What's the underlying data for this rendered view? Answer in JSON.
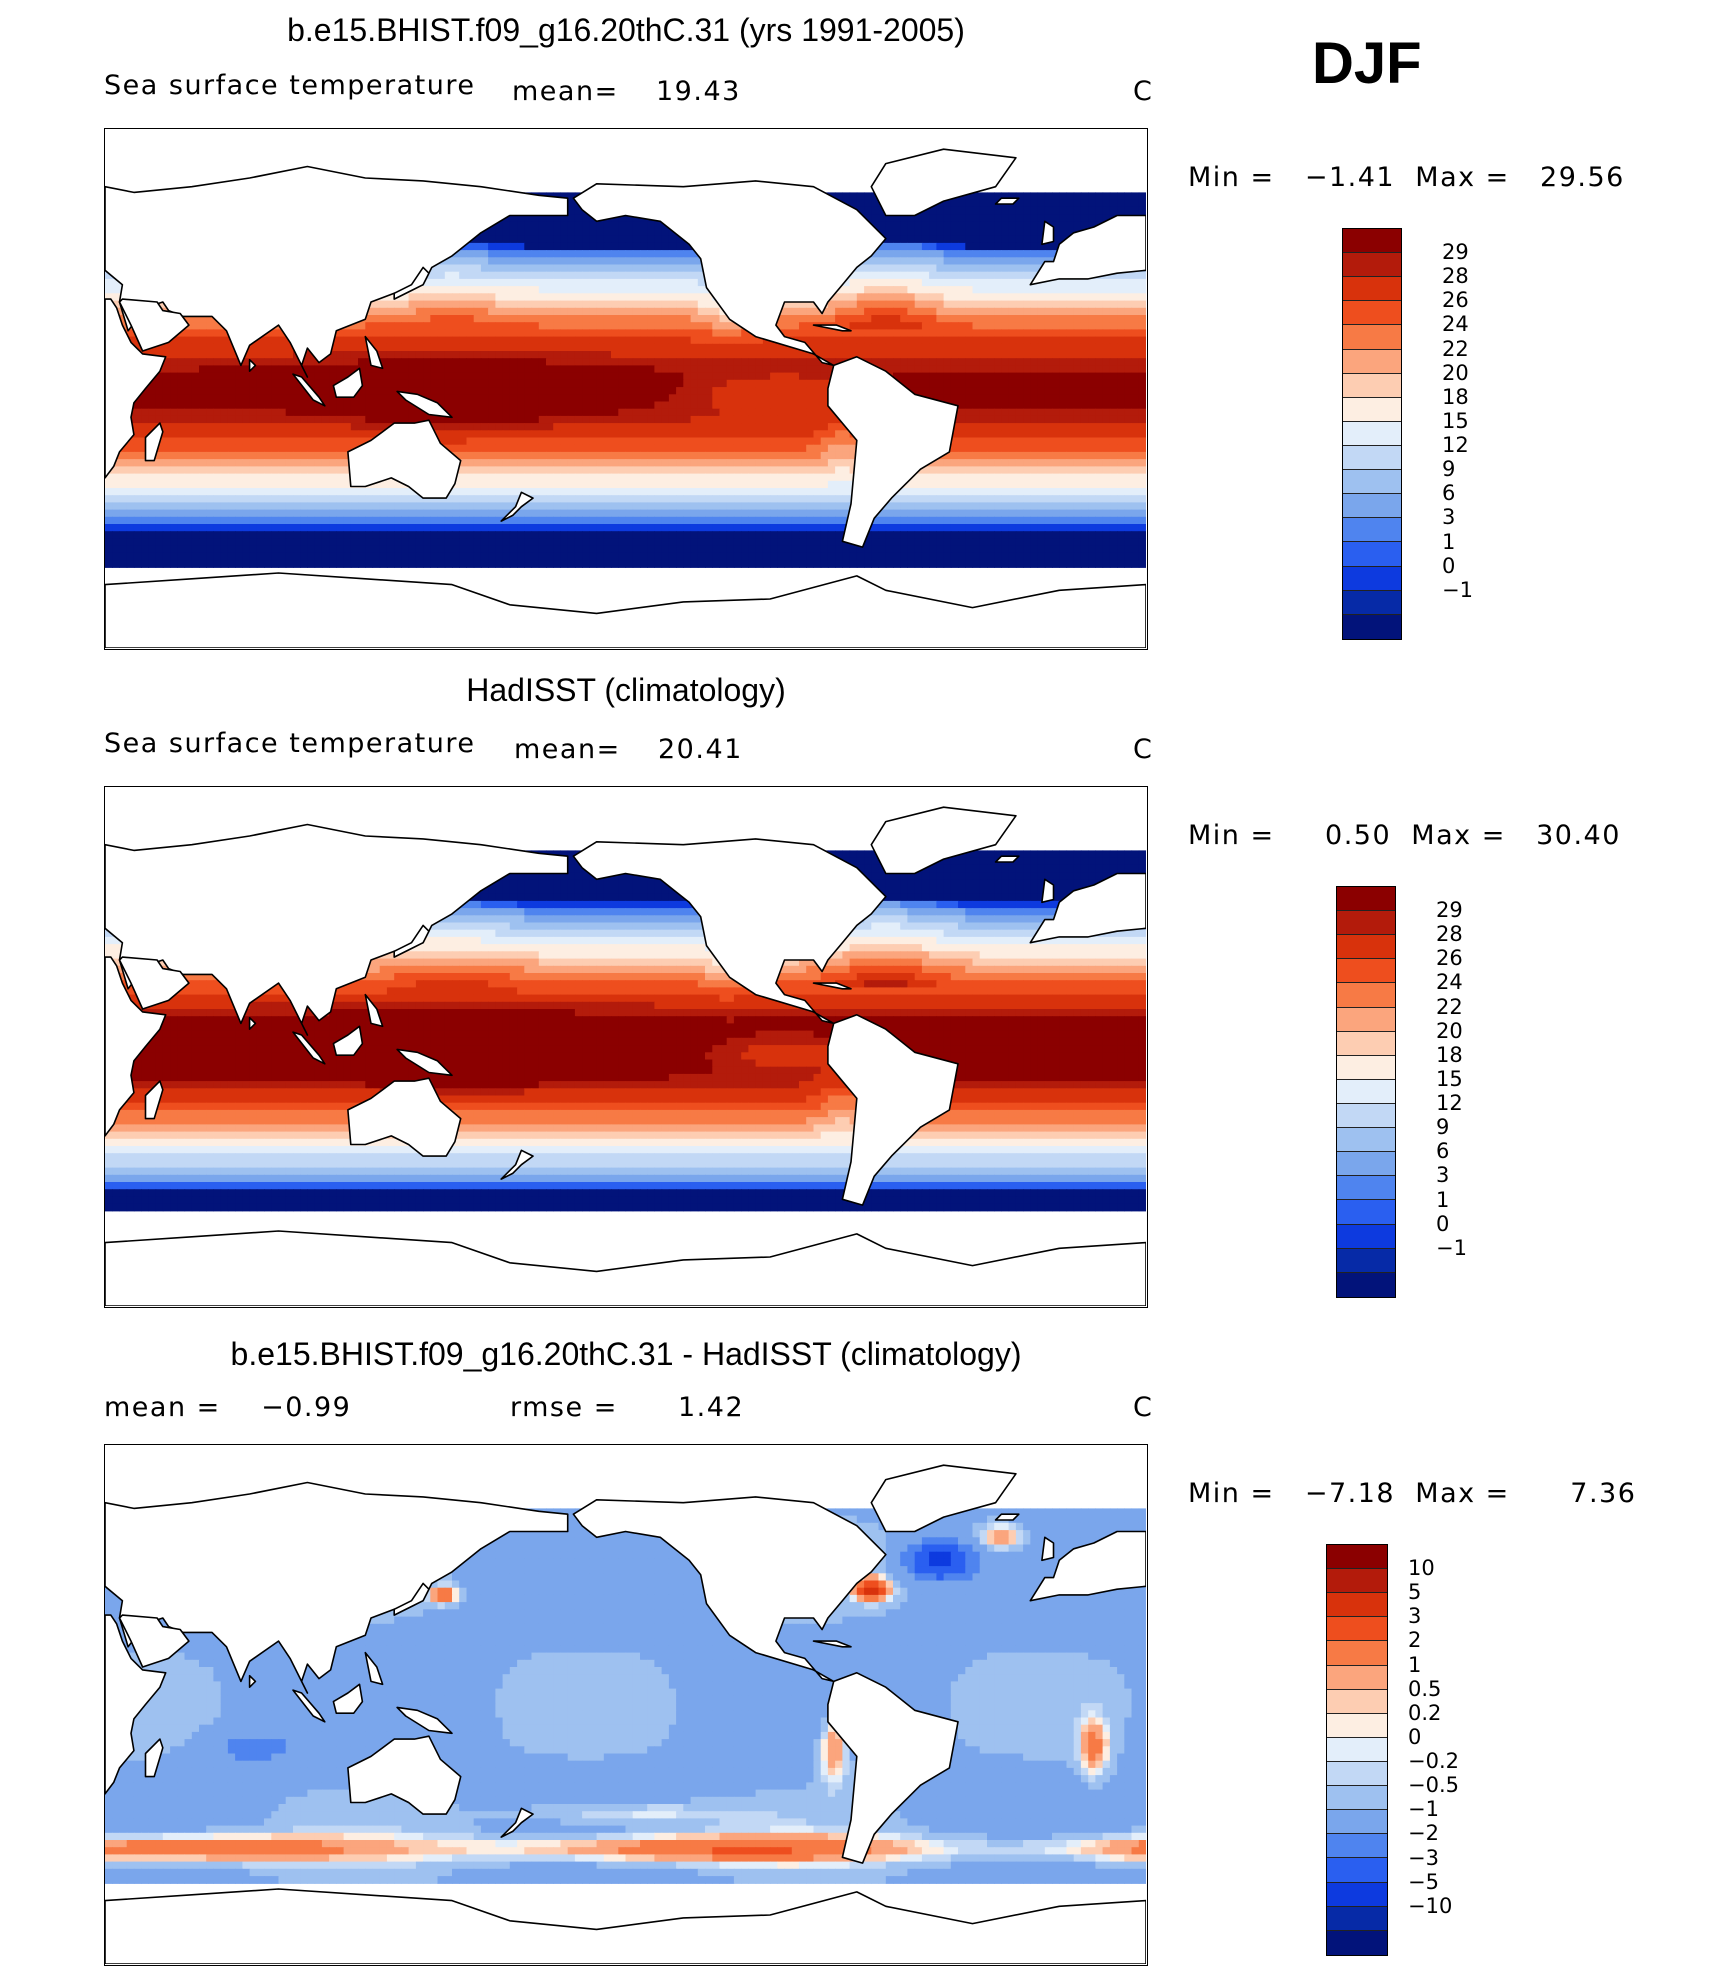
{
  "season": "DJF",
  "panels": [
    {
      "id": "model",
      "title": "b.e15.BHIST.f09_g16.20thC.31 (yrs 1991-2005)",
      "left_text": "Sea surface temperature",
      "stat_label": "mean=",
      "stat_value": "19.43",
      "units": "C",
      "minmax": "Min =   −1.41  Max =   29.56",
      "colorbar": {
        "labels": [
          "29",
          "28",
          "26",
          "24",
          "22",
          "20",
          "18",
          "15",
          "12",
          "9",
          "6",
          "3",
          "1",
          "0",
          "−1"
        ],
        "colors": [
          "#8b0000",
          "#b31b0b",
          "#d8320c",
          "#ee4e1e",
          "#f77a45",
          "#fba57d",
          "#fdcdb2",
          "#fdeee2",
          "#e3eefa",
          "#c2d8f5",
          "#9ec1f0",
          "#7aa6ec",
          "#4f84ef",
          "#2a5ff0",
          "#0d3adf",
          "#062aa7",
          "#02137a"
        ]
      },
      "field": "sst"
    },
    {
      "id": "obs",
      "title": "HadISST (climatology)",
      "left_text": "Sea surface temperature",
      "stat_label": "mean=",
      "stat_value": "20.41",
      "units": "C",
      "minmax": "Min =     0.50  Max =   30.40",
      "colorbar": {
        "labels": [
          "29",
          "28",
          "26",
          "24",
          "22",
          "20",
          "18",
          "15",
          "12",
          "9",
          "6",
          "3",
          "1",
          "0",
          "−1"
        ],
        "colors": [
          "#8b0000",
          "#b31b0b",
          "#d8320c",
          "#ee4e1e",
          "#f77a45",
          "#fba57d",
          "#fdcdb2",
          "#fdeee2",
          "#e3eefa",
          "#c2d8f5",
          "#9ec1f0",
          "#7aa6ec",
          "#4f84ef",
          "#2a5ff0",
          "#0d3adf",
          "#062aa7",
          "#02137a"
        ]
      },
      "field": "sst_obs"
    },
    {
      "id": "diff",
      "title": "b.e15.BHIST.f09_g16.20thC.31 - HadISST (climatology)",
      "left_text": "mean =    −0.99",
      "stat_label": "rmse =",
      "stat_value": "1.42",
      "units": "C",
      "minmax": "Min =   −7.18  Max =      7.36",
      "colorbar": {
        "labels": [
          "10",
          "5",
          "3",
          "2",
          "1",
          "0.5",
          "0.2",
          "0",
          "−0.2",
          "−0.5",
          "−1",
          "−2",
          "−3",
          "−5",
          "−10"
        ],
        "colors": [
          "#8b0000",
          "#b31b0b",
          "#d8320c",
          "#ee4e1e",
          "#f77a45",
          "#fba57d",
          "#fdcdb2",
          "#fdeee2",
          "#e3eefa",
          "#c2d8f5",
          "#9ec1f0",
          "#7aa6ec",
          "#4f84ef",
          "#2a5ff0",
          "#0d3adf",
          "#062aa7",
          "#02137a"
        ]
      },
      "field": "diff"
    }
  ]
}
